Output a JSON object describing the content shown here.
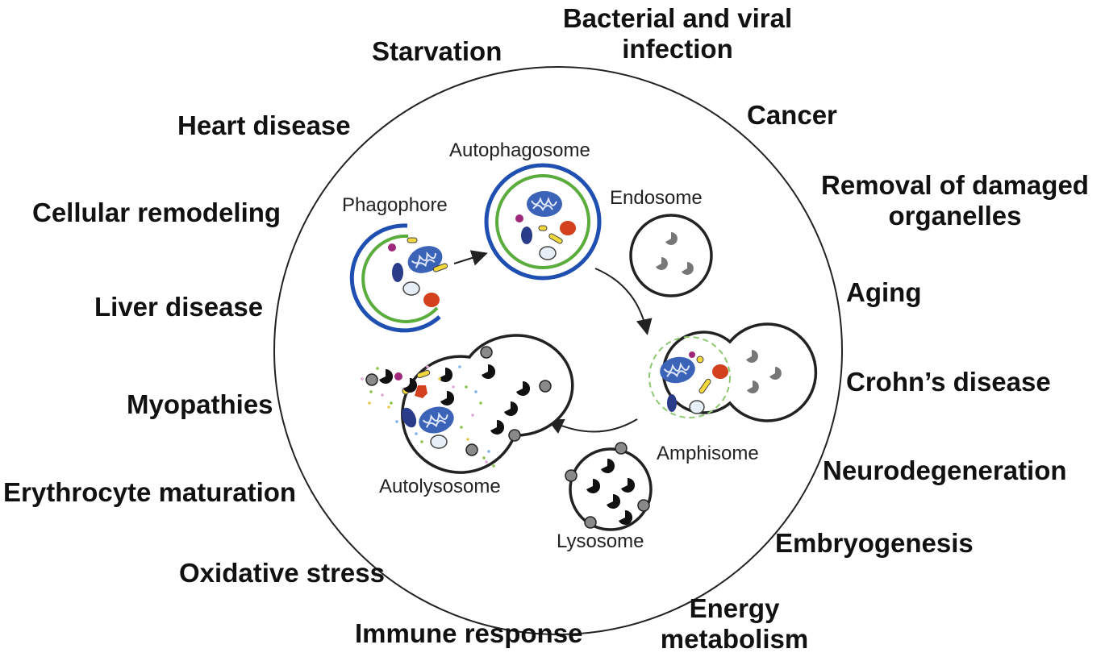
{
  "outer_labels": {
    "starvation": "Starvation",
    "infection_line1": "Bacterial and viral",
    "infection_line2": "infection",
    "cancer": "Cancer",
    "removal_line1": "Removal of damaged",
    "removal_line2": "organelles",
    "aging": "Aging",
    "crohns": "Crohn’s disease",
    "neurodegeneration": "Neurodegeneration",
    "embryogenesis": "Embryogenesis",
    "energy_line1": "Energy",
    "energy_line2": "metabolism",
    "immune": "Immune response",
    "oxidative": "Oxidative stress",
    "erythrocyte": "Erythrocyte maturation",
    "myopathies": "Myopathies",
    "liver": "Liver disease",
    "remodeling": "Cellular remodeling",
    "heart": "Heart disease"
  },
  "stages": {
    "phagophore": "Phagophore",
    "autophagosome": "Autophagosome",
    "endosome": "Endosome",
    "amphisome": "Amphisome",
    "lysosome": "Lysosome",
    "autolysosome": "Autolysosome"
  },
  "colors": {
    "membrane_blue": "#1f4fb0",
    "membrane_green": "#5aac3c",
    "mitochondria": "#3b63b8",
    "red_organelle": "#d2401e",
    "yellow_organelle": "#f2d83c",
    "magenta_organelle": "#a0287a",
    "lysosome_dot": "#8a8a8a"
  },
  "icons": {
    "mitochondrion": "mitochondrion-icon",
    "enzyme": "lysosomal-enzyme-icon"
  }
}
